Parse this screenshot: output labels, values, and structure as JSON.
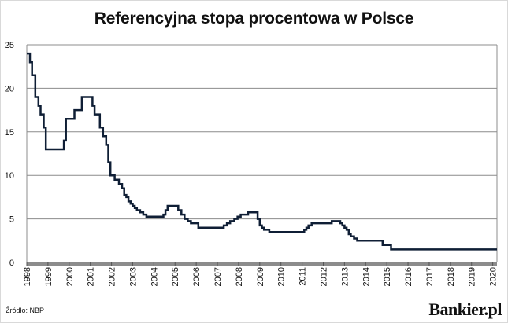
{
  "title": "Referencyjna stopa procentowa w Polsce",
  "source": "Źródło: NBP",
  "brand": "Bankier.pl",
  "chart_data": {
    "type": "line",
    "title": "Referencyjna stopa procentowa w Polsce",
    "xlabel": "",
    "ylabel": "",
    "xlim": [
      1998,
      2020.2
    ],
    "ylim": [
      0,
      25
    ],
    "grid": "horizontal",
    "line_color": "#0f1e35",
    "x_ticks": [
      "1998",
      "1999",
      "2000",
      "2001",
      "2002",
      "2003",
      "2004",
      "2005",
      "2006",
      "2007",
      "2008",
      "2009",
      "2010",
      "2011",
      "2012",
      "2013",
      "2014",
      "2015",
      "2016",
      "2017",
      "2018",
      "2019",
      "2020"
    ],
    "y_ticks": [
      0,
      5,
      10,
      15,
      20,
      25
    ],
    "series": [
      {
        "name": "",
        "step": true,
        "x": [
          1998.0,
          1998.15,
          1998.25,
          1998.4,
          1998.55,
          1998.65,
          1998.8,
          1998.9,
          1999.0,
          1999.2,
          1999.75,
          1999.85,
          2000.0,
          2000.25,
          2000.6,
          2001.1,
          2001.2,
          2001.45,
          2001.6,
          2001.75,
          2001.85,
          2001.95,
          2002.05,
          2002.15,
          2002.35,
          2002.5,
          2002.6,
          2002.7,
          2002.8,
          2002.9,
          2003.0,
          2003.1,
          2003.2,
          2003.35,
          2003.5,
          2003.65,
          2004.45,
          2004.55,
          2004.65,
          2005.15,
          2005.3,
          2005.45,
          2005.6,
          2005.75,
          2006.1,
          2007.3,
          2007.45,
          2007.6,
          2007.8,
          2007.95,
          2008.1,
          2008.45,
          2008.9,
          2009.0,
          2009.1,
          2009.2,
          2009.3,
          2009.45,
          2011.1,
          2011.2,
          2011.3,
          2011.45,
          2012.4,
          2012.8,
          2012.9,
          2013.0,
          2013.1,
          2013.2,
          2013.3,
          2013.45,
          2013.6,
          2014.8,
          2015.2,
          2020.2
        ],
        "values": [
          24.0,
          23.0,
          21.5,
          19.0,
          18.0,
          17.0,
          15.5,
          13.0,
          13.0,
          13.0,
          14.0,
          16.5,
          16.5,
          17.5,
          19.0,
          18.0,
          17.0,
          15.5,
          14.5,
          13.5,
          11.5,
          10.0,
          10.0,
          9.5,
          9.0,
          8.5,
          7.75,
          7.5,
          7.0,
          6.75,
          6.5,
          6.25,
          6.0,
          5.75,
          5.5,
          5.25,
          5.5,
          6.0,
          6.5,
          6.0,
          5.5,
          5.0,
          4.75,
          4.5,
          4.0,
          4.25,
          4.5,
          4.75,
          5.0,
          5.25,
          5.5,
          5.75,
          5.0,
          4.25,
          4.0,
          3.75,
          3.75,
          3.5,
          3.75,
          4.0,
          4.25,
          4.5,
          4.75,
          4.5,
          4.25,
          4.0,
          3.75,
          3.25,
          3.0,
          2.75,
          2.5,
          2.0,
          1.5,
          1.5
        ]
      }
    ]
  }
}
